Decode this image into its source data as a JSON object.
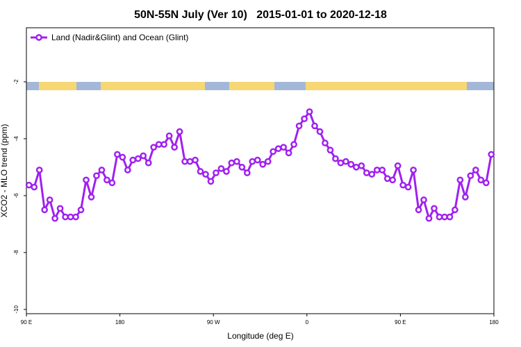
{
  "chart_data": {
    "type": "line",
    "title": "50N-55N July (Ver 10)   2015-01-01 to 2020-12-18",
    "x_label": "Longitude (deg E)",
    "y_label": "XCO2 - MLO trend (ppm)",
    "xlim": [
      90,
      540
    ],
    "ylim": [
      -10.15,
      -0.1
    ],
    "xticks": [
      {
        "value": 90,
        "label": "90 E"
      },
      180,
      {
        "value": 270,
        "label": "90 W"
      },
      {
        "value": 360,
        "label": "0"
      },
      {
        "value": 450,
        "label": "90 E"
      },
      {
        "value": 540,
        "label": "180"
      }
    ],
    "yticks": [
      -10,
      -8,
      -6,
      -4,
      -2
    ],
    "legend": "top-left",
    "x": [
      92.5,
      97.5,
      102.5,
      107.5,
      112.5,
      117.5,
      122.5,
      127.5,
      132.5,
      137.5,
      142.5,
      147.5,
      152.5,
      157.5,
      162.5,
      167.5,
      172.5,
      177.5,
      182.5,
      187.5,
      192.5,
      197.5,
      202.5,
      207.5,
      212.5,
      217.5,
      222.5,
      227.5,
      232.5,
      237.5,
      242.5,
      247.5,
      252.5,
      257.5,
      262.5,
      267.5,
      272.5,
      277.5,
      282.5,
      287.5,
      292.5,
      297.5,
      302.5,
      307.5,
      312.5,
      317.5,
      322.5,
      327.5,
      332.5,
      337.5,
      342.5,
      347.5,
      352.5,
      357.5,
      362.5,
      367.5,
      372.5,
      377.5,
      382.5,
      387.5,
      392.5,
      397.5,
      402.5,
      407.5,
      412.5,
      417.5,
      422.5,
      427.5,
      432.5,
      437.5,
      442.5,
      447.5,
      452.5,
      457.5,
      462.5,
      467.5,
      472.5,
      477.5,
      482.5,
      487.5,
      492.5,
      497.5,
      502.5,
      507.5,
      512.5,
      517.5,
      522.5,
      527.5,
      532.5,
      537.5
    ],
    "series": [
      {
        "name": "Land (Nadir&Glint) and Ocean (Glint)",
        "color": "#a020f0",
        "values": [
          -5.63,
          -5.7,
          -5.1,
          -6.5,
          -6.15,
          -6.8,
          -6.45,
          -6.75,
          -6.75,
          -6.75,
          -6.5,
          -5.45,
          -6.05,
          -5.3,
          -5.1,
          -5.45,
          -5.55,
          -4.55,
          -4.65,
          -5.1,
          -4.75,
          -4.7,
          -4.6,
          -4.85,
          -4.3,
          -4.2,
          -4.2,
          -3.9,
          -4.3,
          -3.75,
          -4.8,
          -4.8,
          -4.75,
          -5.15,
          -5.25,
          -5.5,
          -5.2,
          -5.05,
          -5.15,
          -4.85,
          -4.8,
          -5.0,
          -5.2,
          -4.8,
          -4.75,
          -4.9,
          -4.8,
          -4.45,
          -4.35,
          -4.3,
          -4.5,
          -4.2,
          -3.55,
          -3.3,
          -3.05,
          -3.55,
          -3.75,
          -4.15,
          -4.4,
          -4.7,
          -4.85,
          -4.8,
          -4.9,
          -5.0,
          -4.95,
          -5.2,
          -5.25,
          -5.1,
          -5.1,
          -5.4,
          -5.45,
          -4.95,
          -5.63,
          -5.7,
          -5.1,
          -6.5,
          -6.15,
          -6.8,
          -6.45,
          -6.75,
          -6.75,
          -6.75,
          -6.5,
          -5.45,
          -6.05,
          -5.3,
          -5.1,
          -5.45,
          -5.55,
          -4.55
        ]
      }
    ]
  }
}
